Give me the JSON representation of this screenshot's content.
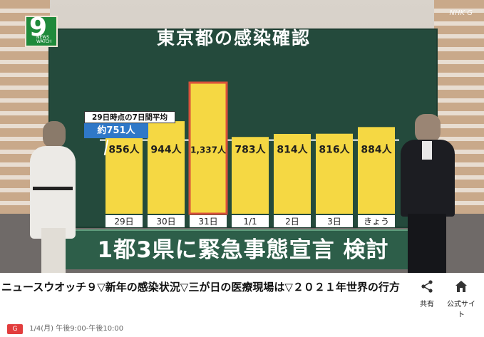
{
  "video": {
    "logo": {
      "number": "9",
      "line1": "NEWS",
      "line2": "WATCH"
    },
    "watermark": "NHK G",
    "board_title": "東京都の感染確認",
    "headline": "1都3県に緊急事態宣言 検討",
    "average_box": {
      "head": "29日時点の7日間平均",
      "value": "約751人"
    }
  },
  "chart_data": {
    "type": "bar",
    "title": "東京都の感染確認",
    "categories": [
      "29日",
      "30日",
      "31日",
      "1/1",
      "2日",
      "3日",
      "きょう"
    ],
    "values": [
      856,
      944,
      1337,
      783,
      814,
      816,
      884
    ],
    "value_labels": [
      "856人",
      "944人",
      "1,337人",
      "783人",
      "814人",
      "816人",
      "884人"
    ],
    "highlight_index": 2,
    "reference_line": {
      "label": "29日時点の7日間平均 約751人",
      "value": 751
    },
    "colors": {
      "bar": "#f5d843",
      "highlight_border": "#d9513a",
      "board": "#244a3c"
    }
  },
  "caption": "ニュースウオッチ９▽新年の感染状況▽三が日の医療現場は▽２０２１年世界の行方",
  "actions": [
    {
      "label": "共有",
      "icon": "share-icon"
    },
    {
      "label": "公式サイト",
      "icon": "home-icon"
    }
  ],
  "meta": {
    "badge": "G",
    "schedule": "1/4(月) 午後9:00-午後10:00"
  }
}
